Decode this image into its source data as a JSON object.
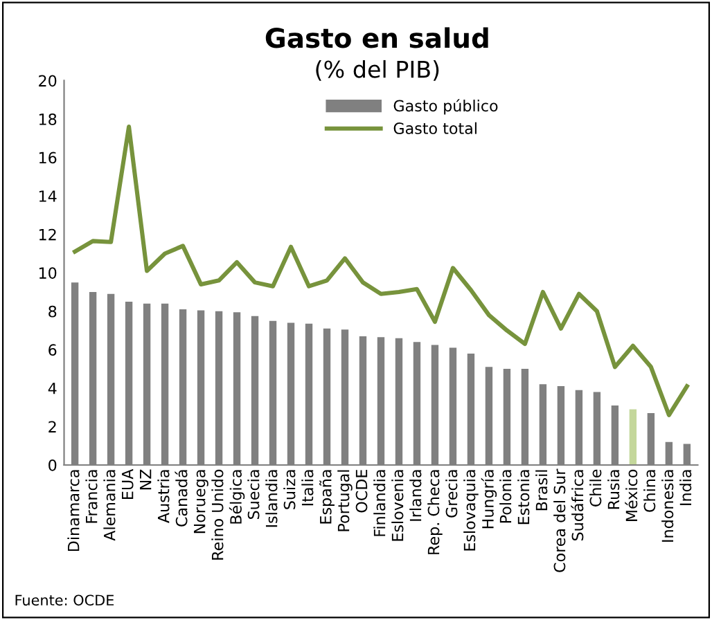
{
  "chart_data": {
    "type": "bar",
    "title": "Gasto en salud",
    "subtitle": "(% del PIB)",
    "categories": [
      "Dinamarca",
      "Francia",
      "Alemania",
      "EUA",
      "NZ",
      "Austria",
      "Canadá",
      "Noruega",
      "Reino Unido",
      "Bélgica",
      "Suecia",
      "Islandia",
      "Suiza",
      "Italia",
      "España",
      "Portugal",
      "OCDE",
      "Finlandia",
      "Eslovenia",
      "Irlanda",
      "Rep. Checa",
      "Grecia",
      "Eslovaquia",
      "Hungría",
      "Polonia",
      "Estonia",
      "Brasil",
      "Corea del Sur",
      "Sudáfrica",
      "Chile",
      "Rusia",
      "México",
      "China",
      "Indonesia",
      "India"
    ],
    "series": [
      {
        "name": "Gasto público",
        "color": "#808080",
        "colors": [
          "#808080",
          "#808080",
          "#808080",
          "#808080",
          "#808080",
          "#808080",
          "#808080",
          "#808080",
          "#808080",
          "#808080",
          "#808080",
          "#808080",
          "#808080",
          "#808080",
          "#808080",
          "#808080",
          "#808080",
          "#808080",
          "#808080",
          "#808080",
          "#808080",
          "#808080",
          "#808080",
          "#808080",
          "#808080",
          "#808080",
          "#808080",
          "#808080",
          "#808080",
          "#808080",
          "#808080",
          "#c4d79b",
          "#808080",
          "#808080",
          "#808080"
        ],
        "values": [
          9.5,
          9.0,
          8.9,
          8.5,
          8.4,
          8.4,
          8.1,
          8.05,
          8.0,
          7.95,
          7.75,
          7.5,
          7.4,
          7.35,
          7.1,
          7.05,
          6.7,
          6.65,
          6.6,
          6.4,
          6.25,
          6.1,
          5.8,
          5.1,
          5.0,
          5.0,
          4.2,
          4.1,
          3.9,
          3.8,
          3.1,
          2.9,
          2.7,
          1.2,
          1.1
        ]
      },
      {
        "name": "Gasto total",
        "type": "line",
        "color": "#77933c",
        "values": [
          11.1,
          11.65,
          11.6,
          17.6,
          10.1,
          11.0,
          11.4,
          9.4,
          9.6,
          10.55,
          9.5,
          9.3,
          11.35,
          9.3,
          9.6,
          10.75,
          9.5,
          8.9,
          9.0,
          9.15,
          7.45,
          10.25,
          9.1,
          7.8,
          7.0,
          6.3,
          9.0,
          7.1,
          8.9,
          8.0,
          5.1,
          6.2,
          5.1,
          2.6,
          4.1
        ]
      }
    ],
    "ylim": [
      0,
      20
    ],
    "yticks": [
      0,
      2,
      4,
      6,
      8,
      10,
      12,
      14,
      16,
      18,
      20
    ],
    "grid": false,
    "legend": "top",
    "marker": "none",
    "annotations": [
      "Fuente: OCDE"
    ]
  }
}
